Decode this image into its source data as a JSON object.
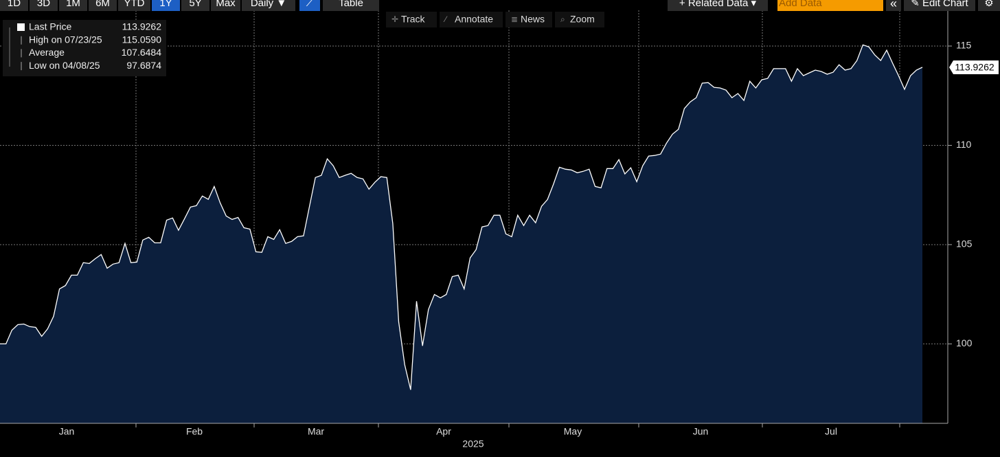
{
  "toolbar": {
    "ranges": [
      "1D",
      "3D",
      "1M",
      "6M",
      "YTD",
      "1Y",
      "5Y",
      "Max"
    ],
    "active_range": "1Y",
    "frequency": "Daily ▼",
    "table": "Table",
    "related": "+ Related Data ▾",
    "add_data": "Add Data",
    "collapse": "«",
    "edit": "✎ Edit Chart"
  },
  "chart_tools": [
    "Track",
    "Annotate",
    "News",
    "Zoom"
  ],
  "legend": [
    {
      "label": "Last Price",
      "value": "113.9262"
    },
    {
      "label": "High on 07/23/25",
      "value": "115.0590"
    },
    {
      "label": "Average",
      "value": "107.6484"
    },
    {
      "label": "Low on 04/08/25",
      "value": "97.6874"
    }
  ],
  "chart_data": {
    "type": "area",
    "series": [
      {
        "color": "#ffffff",
        "fill": "#0c1f3d",
        "values": [
          100.0,
          100.0,
          100.69,
          100.97,
          101.0,
          100.87,
          100.83,
          100.38,
          100.76,
          101.39,
          102.77,
          102.94,
          103.46,
          103.46,
          104.09,
          104.05,
          104.29,
          104.5,
          103.81,
          104.02,
          104.09,
          105.06,
          104.09,
          104.12,
          105.23,
          105.37,
          105.09,
          105.09,
          106.23,
          106.34,
          105.72,
          106.3,
          106.89,
          106.96,
          107.45,
          107.28,
          107.93,
          107.1,
          106.44,
          106.27,
          106.37,
          105.85,
          105.78,
          104.64,
          104.61,
          105.4,
          105.26,
          105.75,
          105.06,
          105.16,
          105.4,
          105.44,
          106.93,
          108.38,
          108.49,
          109.32,
          108.97,
          108.38,
          108.49,
          108.59,
          108.38,
          108.31,
          107.79,
          108.14,
          108.42,
          108.38,
          106.06,
          101.11,
          98.96,
          97.69,
          102.15,
          99.9,
          101.73,
          102.49,
          102.32,
          102.49,
          103.39,
          103.46,
          102.77,
          104.33,
          104.75,
          105.89,
          105.96,
          106.48,
          106.48,
          105.54,
          105.4,
          106.48,
          105.96,
          106.48,
          106.1,
          106.93,
          107.27,
          108.04,
          108.9,
          108.8,
          108.76,
          108.62,
          108.69,
          108.8,
          107.93,
          107.86,
          108.83,
          108.83,
          109.28,
          108.56,
          108.87,
          108.17,
          108.97,
          109.46,
          109.49,
          109.56,
          110.11,
          110.56,
          110.81,
          111.85,
          112.19,
          112.4,
          113.13,
          113.16,
          112.92,
          112.89,
          112.78,
          112.4,
          112.61,
          112.26,
          113.23,
          112.89,
          113.3,
          113.37,
          113.86,
          113.86,
          113.86,
          113.23,
          113.86,
          113.51,
          113.65,
          113.79,
          113.72,
          113.58,
          113.68,
          114.06,
          113.79,
          113.86,
          114.27,
          115.06,
          114.96,
          114.55,
          114.27,
          114.79,
          114.13,
          113.51,
          112.82,
          113.51,
          113.79,
          113.93
        ]
      }
    ],
    "ylim": [
      96,
      116.8
    ],
    "yticks": [
      100,
      105,
      110,
      115
    ],
    "grid": true,
    "months": [
      "Jan",
      "Feb",
      "Mar",
      "Apr",
      "May",
      "Jun",
      "Jul"
    ],
    "year": "2025"
  }
}
